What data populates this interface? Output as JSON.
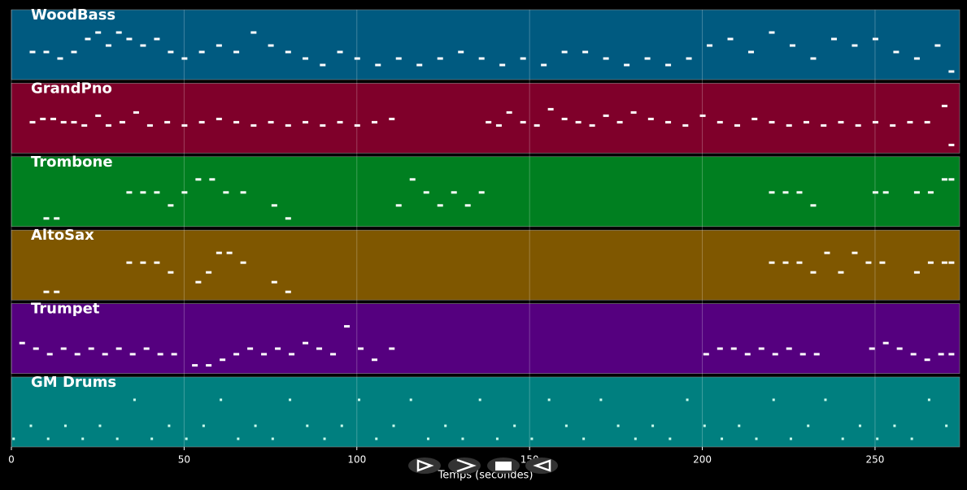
{
  "chart_data": {
    "type": "piano-roll",
    "x_label": "Temps (secondes)",
    "xlim": [
      0,
      274.5
    ],
    "xticks": [
      0,
      50,
      100,
      150,
      200,
      250
    ],
    "grid": true,
    "series": [
      {
        "name": "WoodBass",
        "color": "#005a80",
        "x": [
          6,
          10,
          14,
          18,
          22,
          25,
          28,
          31,
          34,
          38,
          42,
          46,
          50,
          55,
          60,
          65,
          70,
          75,
          80,
          85,
          90,
          95,
          100,
          106,
          112,
          118,
          124,
          130,
          136,
          142,
          148,
          154,
          160,
          166,
          172,
          178,
          184,
          190,
          196,
          202,
          208,
          214,
          220,
          226,
          232,
          238,
          244,
          250,
          256,
          262,
          268,
          272
        ],
        "values": [
          45,
          45,
          44,
          45,
          47,
          48,
          46,
          48,
          47,
          46,
          47,
          45,
          44,
          45,
          46,
          45,
          48,
          46,
          45,
          44,
          43,
          45,
          44,
          43,
          44,
          43,
          44,
          45,
          44,
          43,
          44,
          43,
          45,
          45,
          44,
          43,
          44,
          43,
          44,
          46,
          47,
          45,
          48,
          46,
          44,
          47,
          46,
          47,
          45,
          44,
          46,
          42
        ]
      },
      {
        "name": "GrandPno",
        "color": "#7f002a",
        "x": [
          6,
          9,
          12,
          15,
          18,
          21,
          25,
          28,
          32,
          36,
          40,
          45,
          50,
          55,
          60,
          65,
          70,
          75,
          80,
          85,
          90,
          95,
          100,
          105,
          110,
          null,
          138,
          141,
          144,
          148,
          152,
          156,
          160,
          164,
          168,
          172,
          176,
          180,
          185,
          190,
          195,
          200,
          205,
          210,
          215,
          220,
          225,
          230,
          235,
          240,
          245,
          250,
          255,
          260,
          265,
          270,
          272
        ],
        "values": [
          62,
          63,
          63,
          62,
          62,
          61,
          64,
          61,
          62,
          65,
          61,
          62,
          61,
          62,
          63,
          62,
          61,
          62,
          61,
          62,
          61,
          62,
          61,
          62,
          63,
          null,
          62,
          61,
          65,
          62,
          61,
          66,
          63,
          62,
          61,
          64,
          62,
          65,
          63,
          62,
          61,
          64,
          62,
          61,
          63,
          62,
          61,
          62,
          61,
          62,
          61,
          62,
          61,
          62,
          62,
          67,
          55
        ]
      },
      {
        "name": "Trombone",
        "color": "#007f20",
        "x": [
          10,
          13,
          null,
          34,
          38,
          42,
          46,
          50,
          54,
          58,
          62,
          67,
          null,
          76,
          80,
          null,
          112,
          116,
          120,
          124,
          128,
          132,
          136,
          null,
          220,
          224,
          228,
          232,
          null,
          250,
          253,
          null,
          262,
          266,
          270,
          272
        ],
        "values": [
          50,
          50,
          null,
          52,
          52,
          52,
          51,
          52,
          53,
          53,
          52,
          52,
          null,
          51,
          50,
          null,
          51,
          53,
          52,
          51,
          52,
          51,
          52,
          null,
          52,
          52,
          52,
          51,
          null,
          52,
          52,
          null,
          52,
          52,
          53,
          53
        ]
      },
      {
        "name": "AltoSax",
        "color": "#7f5700",
        "x": [
          10,
          13,
          null,
          34,
          38,
          42,
          46,
          null,
          54,
          57,
          60,
          63,
          67,
          null,
          76,
          80,
          null,
          220,
          224,
          228,
          232,
          236,
          240,
          244,
          248,
          252,
          null,
          262,
          266,
          270,
          272
        ],
        "values": [
          48,
          48,
          null,
          51,
          51,
          51,
          50,
          null,
          49,
          50,
          52,
          52,
          51,
          null,
          49,
          48,
          null,
          51,
          51,
          51,
          50,
          52,
          50,
          52,
          51,
          51,
          null,
          50,
          51,
          51,
          51
        ]
      },
      {
        "name": "Trumpet",
        "color": "#55007f",
        "x": [
          3,
          7,
          11,
          15,
          19,
          23,
          27,
          31,
          35,
          39,
          43,
          47,
          null,
          53,
          57,
          61,
          65,
          69,
          73,
          77,
          81,
          85,
          89,
          93,
          97,
          101,
          105,
          110,
          null,
          201,
          205,
          209,
          213,
          217,
          221,
          225,
          229,
          233,
          null,
          249,
          253,
          257,
          261,
          265,
          269,
          272
        ],
        "values": [
          66,
          65,
          64,
          65,
          64,
          65,
          64,
          65,
          64,
          65,
          64,
          64,
          null,
          62,
          62,
          63,
          64,
          65,
          64,
          65,
          64,
          66,
          65,
          64,
          69,
          65,
          63,
          65,
          null,
          64,
          65,
          65,
          64,
          65,
          64,
          65,
          64,
          64,
          null,
          65,
          66,
          65,
          64,
          63,
          64,
          64
        ]
      },
      {
        "name": "GM Drums",
        "color": "#007f7f",
        "x": [
          1,
          6,
          11,
          16,
          21,
          26,
          31,
          36,
          41,
          46,
          51,
          56,
          61,
          66,
          71,
          76,
          81,
          86,
          91,
          96,
          101,
          106,
          111,
          116,
          121,
          126,
          131,
          136,
          141,
          146,
          151,
          156,
          161,
          166,
          171,
          176,
          181,
          186,
          191,
          196,
          201,
          206,
          211,
          216,
          221,
          226,
          231,
          236,
          241,
          246,
          251,
          256,
          261,
          266,
          271
        ],
        "values": [
          36,
          38,
          36,
          38,
          36,
          38,
          36,
          42,
          36,
          38,
          36,
          38,
          42,
          36,
          38,
          36,
          42,
          38,
          36,
          38,
          42,
          36,
          38,
          42,
          36,
          38,
          36,
          42,
          36,
          38,
          36,
          42,
          38,
          36,
          42,
          38,
          36,
          38,
          36,
          42,
          38,
          36,
          38,
          36,
          42,
          36,
          38,
          42,
          36,
          38,
          36,
          38,
          36,
          42,
          38
        ]
      }
    ]
  }
}
